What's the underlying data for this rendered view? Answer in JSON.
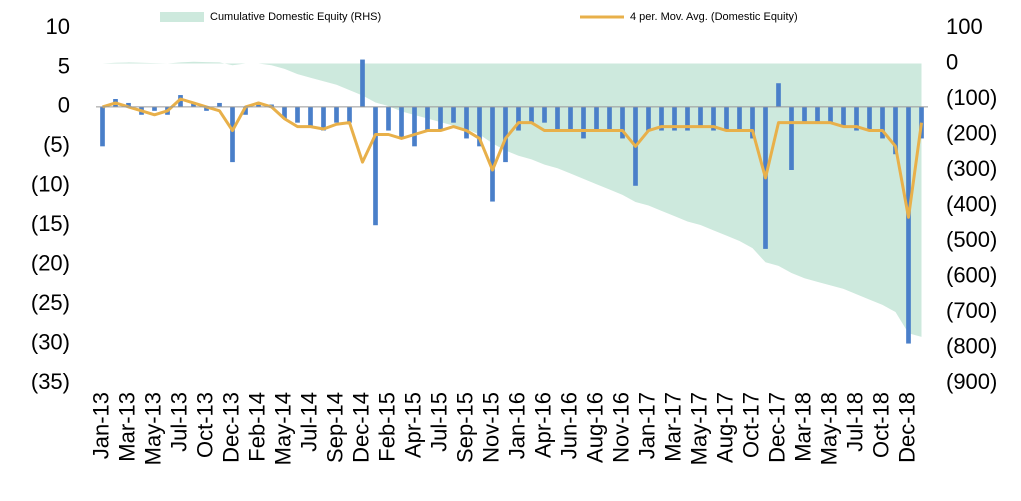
{
  "chart_data": {
    "type": "combo",
    "categories": [
      "Jan-13",
      null,
      "Mar-13",
      null,
      "May-13",
      null,
      "Jul-13",
      null,
      "Oct-13",
      null,
      "Dec-13",
      null,
      "Feb-14",
      null,
      "May-14",
      null,
      "Jul-14",
      null,
      "Sep-14",
      null,
      "Dec-14",
      null,
      "Feb-15",
      null,
      "Apr-15",
      null,
      "Jul-15",
      null,
      "Sep-15",
      null,
      "Nov-15",
      null,
      "Jan-16",
      null,
      "Apr-16",
      null,
      "Jun-16",
      null,
      "Aug-16",
      null,
      "Nov-16",
      null,
      "Jan-17",
      null,
      "Mar-17",
      null,
      "May-17",
      null,
      "Aug-17",
      null,
      "Oct-17",
      null,
      "Dec-17",
      null,
      "Mar-18",
      null,
      "May-18",
      null,
      "Jul-18",
      null,
      "Oct-18",
      null,
      "Dec-18",
      null
    ],
    "series": [
      {
        "type": "area",
        "name": "Cumulative Domestic Equity (RHS)",
        "color": "#cde9dd",
        "axis": "y2",
        "values": [
          0,
          2,
          3,
          2,
          1,
          0,
          3,
          5,
          4,
          3,
          -5,
          0,
          0,
          -5,
          -15,
          -30,
          -40,
          -50,
          -60,
          -75,
          -90,
          -110,
          -120,
          -135,
          -145,
          -155,
          -165,
          -175,
          -185,
          -200,
          -225,
          -245,
          -260,
          -270,
          -285,
          -295,
          -310,
          -325,
          -340,
          -355,
          -370,
          -390,
          -400,
          -415,
          -430,
          -445,
          -455,
          -470,
          -485,
          -500,
          -520,
          -560,
          -570,
          -590,
          -605,
          -615,
          -625,
          -635,
          -650,
          -665,
          -680,
          -700,
          -760,
          -770
        ]
      },
      {
        "type": "bar",
        "color": "#4a7fc9",
        "values": [
          -5,
          1,
          0.5,
          -1,
          -0.5,
          -1,
          1.5,
          0.5,
          -0.5,
          0.5,
          -7,
          -1,
          0.5,
          0.3,
          -1.5,
          -2,
          -2.5,
          -3,
          -2,
          -2,
          6,
          -15,
          -3,
          -4,
          -5,
          -3,
          -3,
          -2,
          -4,
          -5,
          -12,
          -7,
          -3,
          -2,
          -2,
          -3,
          -3,
          -4,
          -3,
          -3,
          -4,
          -10,
          -3,
          -3,
          -3,
          -3,
          -2.5,
          -3,
          -3,
          -3,
          -4,
          -18,
          3,
          -8,
          -2,
          -2,
          -2,
          -2.5,
          -3,
          -3,
          -4,
          -6,
          -30,
          -4
        ]
      },
      {
        "type": "line",
        "name": "4 per. Mov. Avg. (Domestic Equity)",
        "color": "#e8b04a",
        "values": [
          0,
          0.5,
          0,
          -0.5,
          -1,
          -0.5,
          1,
          0.5,
          0,
          -0.5,
          -3,
          0,
          0.5,
          0,
          -1.5,
          -2.5,
          -2.5,
          -2.8,
          -2.2,
          -2,
          -7,
          -3.5,
          -3.5,
          -4,
          -3.5,
          -3,
          -3,
          -2.5,
          -3,
          -4,
          -8,
          -4,
          -2,
          -2,
          -3,
          -3,
          -3,
          -3,
          -3,
          -3,
          -3,
          -5,
          -3,
          -2.5,
          -2.5,
          -2.5,
          -2.5,
          -2.5,
          -3,
          -3,
          -3,
          -9,
          -2,
          -2,
          -2,
          -2,
          -2,
          -2.5,
          -2.5,
          -3,
          -3,
          -5,
          -14,
          -2
        ]
      }
    ],
    "ylim": [
      -35,
      10
    ],
    "yticks": [
      {
        "value": -35,
        "label": "(35)"
      },
      {
        "value": -30,
        "label": "(30)"
      },
      {
        "value": -25,
        "label": "(25)"
      },
      {
        "value": -20,
        "label": "(20)"
      },
      {
        "value": -15,
        "label": "(15)"
      },
      {
        "value": -10,
        "label": "(10)"
      },
      {
        "value": -5,
        "label": "(5)"
      },
      0,
      5,
      10
    ],
    "y2lim": [
      -900,
      100
    ],
    "y2ticks": [
      {
        "value": -900,
        "label": "(900)"
      },
      {
        "value": -800,
        "label": "(800)"
      },
      {
        "value": -700,
        "label": "(700)"
      },
      {
        "value": -600,
        "label": "(600)"
      },
      {
        "value": -500,
        "label": "(500)"
      },
      {
        "value": -400,
        "label": "(400)"
      },
      {
        "value": -300,
        "label": "(300)"
      },
      {
        "value": -200,
        "label": "(200)"
      },
      {
        "value": -100,
        "label": "(100)"
      },
      0,
      100
    ],
    "legend": "top"
  }
}
